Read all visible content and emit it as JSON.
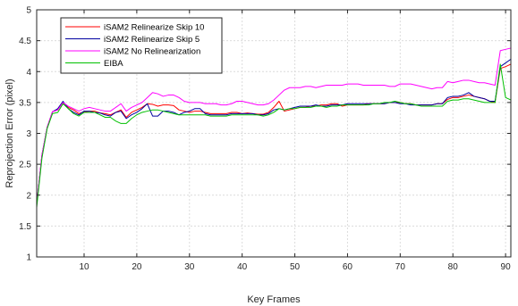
{
  "chart_data": {
    "type": "line",
    "xlabel": "Key Frames",
    "ylabel": "Reprojection Error (pixel)",
    "xlim": [
      1,
      91
    ],
    "ylim": [
      1,
      5
    ],
    "xticks": [
      10,
      20,
      30,
      40,
      50,
      60,
      70,
      80,
      90
    ],
    "yticks": [
      1,
      1.5,
      2,
      2.5,
      3,
      3.5,
      4,
      4.5,
      5
    ],
    "grid": true,
    "legend_position": "top-left",
    "series": [
      {
        "name": "iSAM2 Relinearize Skip 10",
        "color": "#ff0000",
        "x": [
          1,
          2,
          3,
          4,
          5,
          6,
          7,
          8,
          9,
          10,
          11,
          12,
          13,
          14,
          15,
          16,
          17,
          18,
          19,
          20,
          21,
          22,
          23,
          24,
          25,
          26,
          27,
          28,
          29,
          30,
          31,
          32,
          33,
          34,
          35,
          36,
          37,
          38,
          39,
          40,
          41,
          42,
          43,
          44,
          45,
          46,
          47,
          48,
          49,
          50,
          51,
          52,
          53,
          54,
          55,
          56,
          57,
          58,
          59,
          60,
          61,
          62,
          63,
          64,
          65,
          66,
          67,
          68,
          69,
          70,
          71,
          72,
          73,
          74,
          75,
          76,
          77,
          78,
          79,
          80,
          81,
          82,
          83,
          84,
          85,
          86,
          87,
          88,
          89,
          90,
          91
        ],
        "y": [
          1.85,
          2.65,
          3.1,
          3.35,
          3.38,
          3.5,
          3.42,
          3.38,
          3.32,
          3.35,
          3.36,
          3.36,
          3.33,
          3.32,
          3.3,
          3.34,
          3.38,
          3.26,
          3.34,
          3.38,
          3.42,
          3.48,
          3.47,
          3.44,
          3.46,
          3.46,
          3.45,
          3.38,
          3.36,
          3.34,
          3.36,
          3.36,
          3.34,
          3.32,
          3.32,
          3.32,
          3.32,
          3.34,
          3.34,
          3.32,
          3.33,
          3.32,
          3.31,
          3.31,
          3.34,
          3.42,
          3.52,
          3.36,
          3.38,
          3.4,
          3.42,
          3.42,
          3.44,
          3.44,
          3.46,
          3.46,
          3.48,
          3.48,
          3.44,
          3.46,
          3.46,
          3.46,
          3.46,
          3.48,
          3.48,
          3.48,
          3.48,
          3.5,
          3.5,
          3.5,
          3.48,
          3.48,
          3.46,
          3.46,
          3.46,
          3.46,
          3.48,
          3.48,
          3.55,
          3.58,
          3.58,
          3.6,
          3.62,
          3.6,
          3.58,
          3.56,
          3.52,
          3.5,
          4.05,
          4.08,
          4.12
        ]
      },
      {
        "name": "iSAM2 Relinearize Skip 5",
        "color": "#0000a0",
        "x": [
          1,
          2,
          3,
          4,
          5,
          6,
          7,
          8,
          9,
          10,
          11,
          12,
          13,
          14,
          15,
          16,
          17,
          18,
          19,
          20,
          21,
          22,
          23,
          24,
          25,
          26,
          27,
          28,
          29,
          30,
          31,
          32,
          33,
          34,
          35,
          36,
          37,
          38,
          39,
          40,
          41,
          42,
          43,
          44,
          45,
          46,
          47,
          48,
          49,
          50,
          51,
          52,
          53,
          54,
          55,
          56,
          57,
          58,
          59,
          60,
          61,
          62,
          63,
          64,
          65,
          66,
          67,
          68,
          69,
          70,
          71,
          72,
          73,
          74,
          75,
          76,
          77,
          78,
          79,
          80,
          81,
          82,
          83,
          84,
          85,
          86,
          87,
          88,
          89,
          90,
          91
        ],
        "y": [
          1.85,
          2.65,
          3.1,
          3.35,
          3.4,
          3.52,
          3.4,
          3.34,
          3.3,
          3.36,
          3.36,
          3.34,
          3.33,
          3.3,
          3.28,
          3.34,
          3.36,
          3.24,
          3.3,
          3.34,
          3.4,
          3.48,
          3.28,
          3.28,
          3.36,
          3.36,
          3.34,
          3.3,
          3.34,
          3.36,
          3.4,
          3.4,
          3.32,
          3.3,
          3.3,
          3.3,
          3.3,
          3.32,
          3.32,
          3.32,
          3.32,
          3.32,
          3.3,
          3.3,
          3.32,
          3.38,
          3.4,
          3.38,
          3.4,
          3.42,
          3.44,
          3.44,
          3.44,
          3.46,
          3.44,
          3.44,
          3.46,
          3.46,
          3.46,
          3.48,
          3.48,
          3.48,
          3.48,
          3.48,
          3.48,
          3.48,
          3.48,
          3.5,
          3.5,
          3.48,
          3.48,
          3.46,
          3.46,
          3.46,
          3.46,
          3.46,
          3.48,
          3.48,
          3.58,
          3.6,
          3.6,
          3.62,
          3.66,
          3.6,
          3.58,
          3.56,
          3.52,
          3.52,
          4.08,
          4.14,
          4.2
        ]
      },
      {
        "name": "iSAM2 No Relinearization",
        "color": "#ff00ff",
        "x": [
          1,
          2,
          3,
          4,
          5,
          6,
          7,
          8,
          9,
          10,
          11,
          12,
          13,
          14,
          15,
          16,
          17,
          18,
          19,
          20,
          21,
          22,
          23,
          24,
          25,
          26,
          27,
          28,
          29,
          30,
          31,
          32,
          33,
          34,
          35,
          36,
          37,
          38,
          39,
          40,
          41,
          42,
          43,
          44,
          45,
          46,
          47,
          48,
          49,
          50,
          51,
          52,
          53,
          54,
          55,
          56,
          57,
          58,
          59,
          60,
          61,
          62,
          63,
          64,
          65,
          66,
          67,
          68,
          69,
          70,
          71,
          72,
          73,
          74,
          75,
          76,
          77,
          78,
          79,
          80,
          81,
          82,
          83,
          84,
          85,
          86,
          87,
          88,
          89,
          90,
          91
        ],
        "y": [
          1.85,
          2.65,
          3.1,
          3.35,
          3.38,
          3.5,
          3.44,
          3.4,
          3.36,
          3.4,
          3.42,
          3.4,
          3.38,
          3.36,
          3.36,
          3.42,
          3.48,
          3.36,
          3.42,
          3.46,
          3.5,
          3.58,
          3.66,
          3.64,
          3.6,
          3.62,
          3.62,
          3.58,
          3.52,
          3.5,
          3.5,
          3.5,
          3.48,
          3.48,
          3.48,
          3.46,
          3.46,
          3.48,
          3.52,
          3.52,
          3.5,
          3.48,
          3.46,
          3.46,
          3.48,
          3.54,
          3.62,
          3.7,
          3.74,
          3.74,
          3.74,
          3.76,
          3.76,
          3.74,
          3.76,
          3.78,
          3.78,
          3.78,
          3.78,
          3.8,
          3.8,
          3.8,
          3.78,
          3.78,
          3.78,
          3.78,
          3.78,
          3.76,
          3.76,
          3.8,
          3.8,
          3.8,
          3.78,
          3.76,
          3.74,
          3.72,
          3.74,
          3.74,
          3.84,
          3.82,
          3.84,
          3.86,
          3.86,
          3.84,
          3.82,
          3.82,
          3.8,
          3.78,
          4.34,
          4.36,
          4.38
        ]
      },
      {
        "name": "EIBA",
        "color": "#00c000",
        "x": [
          1,
          2,
          3,
          4,
          5,
          6,
          7,
          8,
          9,
          10,
          11,
          12,
          13,
          14,
          15,
          16,
          17,
          18,
          19,
          20,
          21,
          22,
          23,
          24,
          25,
          26,
          27,
          28,
          29,
          30,
          31,
          32,
          33,
          34,
          35,
          36,
          37,
          38,
          39,
          40,
          41,
          42,
          43,
          44,
          45,
          46,
          47,
          48,
          49,
          50,
          51,
          52,
          53,
          54,
          55,
          56,
          57,
          58,
          59,
          60,
          61,
          62,
          63,
          64,
          65,
          66,
          67,
          68,
          69,
          70,
          71,
          72,
          73,
          74,
          75,
          76,
          77,
          78,
          79,
          80,
          81,
          82,
          83,
          84,
          85,
          86,
          87,
          88,
          89,
          90,
          91
        ],
        "y": [
          1.8,
          2.6,
          3.08,
          3.32,
          3.34,
          3.48,
          3.4,
          3.32,
          3.28,
          3.34,
          3.34,
          3.34,
          3.3,
          3.26,
          3.26,
          3.2,
          3.16,
          3.16,
          3.24,
          3.3,
          3.34,
          3.36,
          3.38,
          3.38,
          3.36,
          3.34,
          3.32,
          3.3,
          3.3,
          3.3,
          3.3,
          3.3,
          3.3,
          3.28,
          3.28,
          3.28,
          3.28,
          3.3,
          3.3,
          3.3,
          3.3,
          3.3,
          3.3,
          3.28,
          3.3,
          3.34,
          3.4,
          3.38,
          3.4,
          3.4,
          3.42,
          3.42,
          3.42,
          3.44,
          3.44,
          3.42,
          3.44,
          3.44,
          3.46,
          3.46,
          3.46,
          3.46,
          3.46,
          3.46,
          3.48,
          3.48,
          3.5,
          3.5,
          3.52,
          3.5,
          3.48,
          3.48,
          3.46,
          3.44,
          3.44,
          3.44,
          3.44,
          3.44,
          3.52,
          3.54,
          3.54,
          3.56,
          3.56,
          3.54,
          3.52,
          3.5,
          3.5,
          3.5,
          4.12,
          3.58,
          3.54
        ]
      }
    ]
  }
}
